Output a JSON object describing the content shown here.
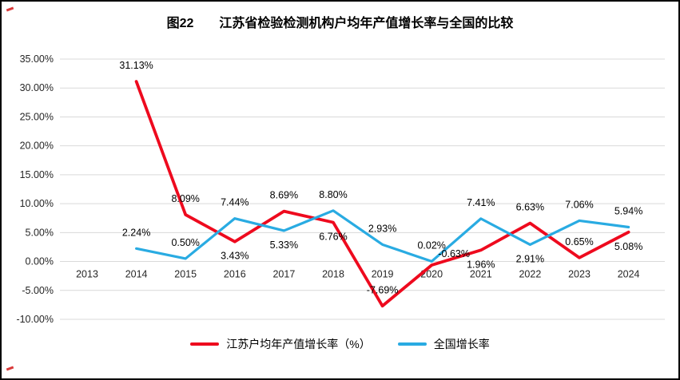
{
  "chart_data": {
    "type": "line",
    "title": "图22　　江苏省检验检测机构户均年产值增长率与全国的比较",
    "categories": [
      "2013",
      "2014",
      "2015",
      "2016",
      "2017",
      "2018",
      "2019",
      "2020",
      "2021",
      "2022",
      "2023",
      "2024"
    ],
    "ylim": [
      -10,
      35
    ],
    "ytick_step": 5,
    "ytick_format": "0.00%",
    "grid": true,
    "legend_position": "bottom",
    "series": [
      {
        "name": "江苏户均年产值增长率（%）",
        "color": "#ee0a1e",
        "start_category": "2014",
        "values": [
          31.13,
          8.09,
          3.43,
          8.69,
          6.76,
          -7.69,
          -0.63,
          1.96,
          6.63,
          0.65,
          5.08
        ],
        "labels": [
          "31.13%",
          "8.09%",
          "3.43%",
          "8.69%",
          "6.76%",
          "-7.69%",
          "-0.63%",
          "1.96%",
          "6.63%",
          "0.65%",
          "5.08%"
        ],
        "label_side": [
          "above",
          "above",
          "below",
          "above",
          "below",
          "above",
          "above-right",
          "below",
          "above",
          "above",
          "below"
        ]
      },
      {
        "name": "全国增长率",
        "color": "#29abe2",
        "start_category": "2014",
        "values": [
          2.24,
          0.5,
          7.44,
          5.33,
          8.8,
          2.93,
          0.02,
          7.41,
          2.91,
          7.06,
          5.94
        ],
        "labels": [
          "2.24%",
          "0.50%",
          "7.44%",
          "5.33%",
          "8.80%",
          "2.93%",
          "0.02%",
          "7.41%",
          "2.91%",
          "7.06%",
          "5.94%"
        ],
        "label_side": [
          "above",
          "above",
          "above",
          "below",
          "above",
          "above",
          "above",
          "above",
          "below",
          "above",
          "above"
        ]
      }
    ]
  }
}
